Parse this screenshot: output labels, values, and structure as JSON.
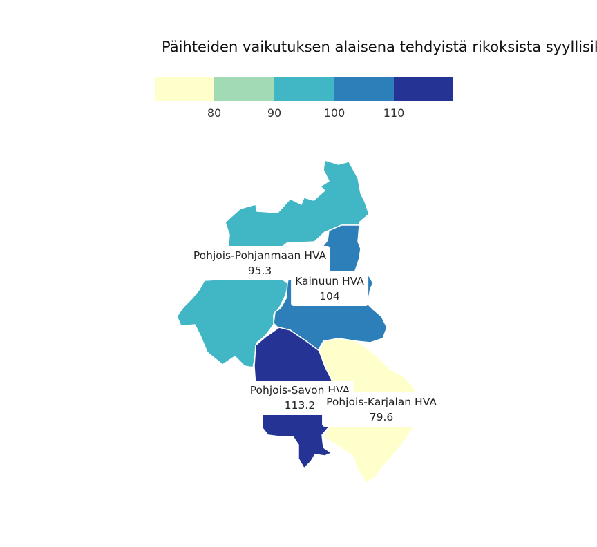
{
  "title": "Päihteiden vaikutuksen alaisena tehdyistä rikoksista syyllisiksi",
  "legend": {
    "colors": [
      "#ffffcc",
      "#a1dab4",
      "#41b6c4",
      "#2c7fb8",
      "#253494"
    ],
    "ticks": [
      "80",
      "90",
      "100",
      "110"
    ],
    "breaks": [
      80,
      90,
      100,
      110
    ]
  },
  "regions": [
    {
      "name": "Pohjois-Pohjanmaan HVA",
      "value": "95.3",
      "color": "#41b6c4"
    },
    {
      "name": "Kainuun HVA",
      "value": "104",
      "color": "#2c7fb8"
    },
    {
      "name": "Pohjois-Savon HVA",
      "value": "113.2",
      "color": "#253494"
    },
    {
      "name": "Pohjois-Karjalan HVA",
      "value": "79.6",
      "color": "#ffffcc"
    }
  ]
}
